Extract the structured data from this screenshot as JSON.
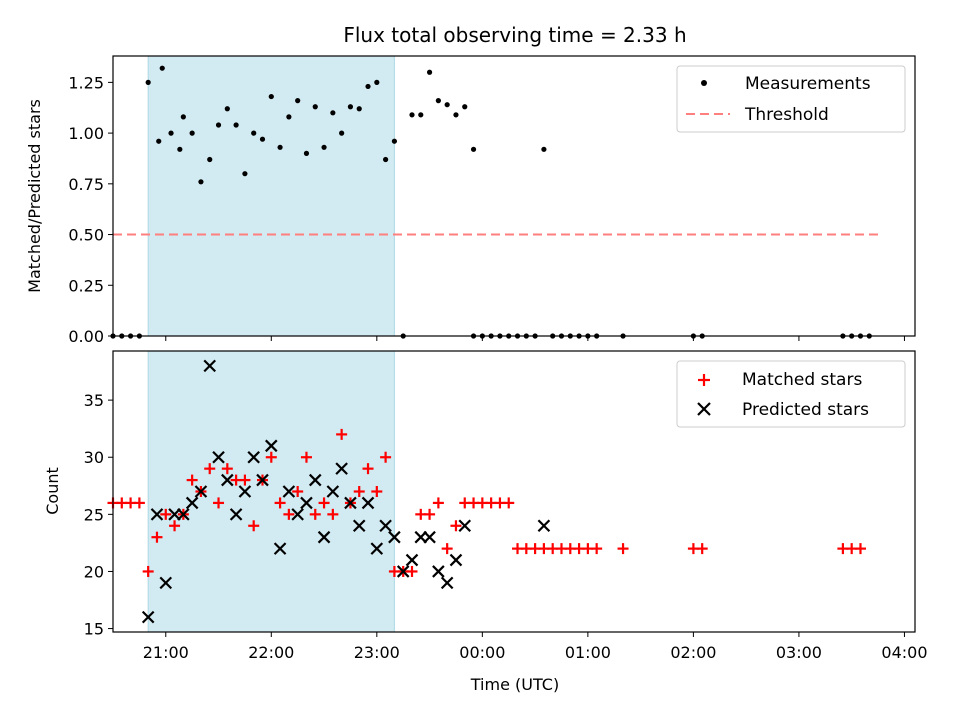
{
  "title": "Flux total observing time = 2.33 h",
  "xlabel": "Time (UTC)",
  "xticks": [
    "21:00",
    "22:00",
    "23:00",
    "00:00",
    "01:00",
    "02:00",
    "03:00",
    "04:00"
  ],
  "shaded_band": {
    "start": "20:50",
    "end": "23:10",
    "color": "#add8e6"
  },
  "chart_data": [
    {
      "type": "scatter",
      "panel": "top",
      "ylabel": "Matched/Predicted stars",
      "ylim": [
        0,
        1.38
      ],
      "yticks": [
        "0.00",
        "0.25",
        "0.50",
        "0.75",
        "1.00",
        "1.25"
      ],
      "legend": {
        "placement": "top-right",
        "entries": [
          "Measurements",
          "Threshold"
        ]
      },
      "series": [
        {
          "name": "Measurements",
          "marker": "dot",
          "color": "#000000",
          "x": [
            "20:50",
            "20:58",
            "21:08",
            "20:56",
            "21:03",
            "21:10",
            "21:15",
            "21:20",
            "21:25",
            "21:30",
            "21:35",
            "21:40",
            "21:45",
            "21:50",
            "21:55",
            "22:00",
            "22:05",
            "22:10",
            "22:15",
            "22:20",
            "22:25",
            "22:30",
            "22:35",
            "22:40",
            "22:45",
            "22:50",
            "22:55",
            "23:00",
            "23:05",
            "23:10",
            "23:20",
            "23:25",
            "23:30",
            "23:35",
            "23:40",
            "23:45",
            "23:50",
            "23:55",
            "00:35",
            "20:30",
            "20:35",
            "20:40",
            "20:45",
            "23:15",
            "23:55",
            "00:00",
            "00:05",
            "00:10",
            "00:15",
            "00:20",
            "00:25",
            "00:30",
            "00:40",
            "00:45",
            "00:50",
            "00:55",
            "01:00",
            "01:05",
            "01:20",
            "02:00",
            "02:05",
            "03:25",
            "03:30",
            "03:35",
            "03:40"
          ],
          "y": [
            1.25,
            1.32,
            0.92,
            0.96,
            1.0,
            1.08,
            1.0,
            0.76,
            0.87,
            1.04,
            1.12,
            1.04,
            0.8,
            1.0,
            0.97,
            1.18,
            0.93,
            1.08,
            1.16,
            0.9,
            1.13,
            0.93,
            1.1,
            1.0,
            1.13,
            1.12,
            1.23,
            1.25,
            0.87,
            0.96,
            1.09,
            1.09,
            1.3,
            1.16,
            1.14,
            1.09,
            1.13,
            0.92,
            0.92,
            0,
            0,
            0,
            0,
            0,
            0,
            0,
            0,
            0,
            0,
            0,
            0,
            0,
            0,
            0,
            0,
            0,
            0,
            0,
            0,
            0,
            0,
            0,
            0,
            0,
            0
          ]
        },
        {
          "name": "Threshold",
          "style": "dashed",
          "color": "#ff7f7f",
          "x": [
            "20:30",
            "03:45"
          ],
          "y": [
            0.5,
            0.5
          ]
        }
      ]
    },
    {
      "type": "scatter",
      "panel": "bottom",
      "ylabel": "Count",
      "ylim": [
        14.7,
        39.3
      ],
      "yticks": [
        "15",
        "20",
        "25",
        "30",
        "35"
      ],
      "legend": {
        "placement": "top-right",
        "entries": [
          "Matched stars",
          "Predicted stars"
        ]
      },
      "series": [
        {
          "name": "Matched stars",
          "marker": "plus",
          "color": "#ff0000",
          "x": [
            "20:30",
            "20:35",
            "20:40",
            "20:45",
            "20:50",
            "20:55",
            "21:00",
            "21:05",
            "21:10",
            "21:15",
            "21:20",
            "21:25",
            "21:30",
            "21:35",
            "21:40",
            "21:45",
            "21:50",
            "21:55",
            "22:00",
            "22:05",
            "22:10",
            "22:15",
            "22:20",
            "22:25",
            "22:30",
            "22:35",
            "22:40",
            "22:45",
            "22:50",
            "22:55",
            "23:00",
            "23:05",
            "23:10",
            "23:15",
            "23:20",
            "23:25",
            "23:30",
            "23:35",
            "23:40",
            "23:45",
            "23:50",
            "23:55",
            "00:00",
            "00:05",
            "00:10",
            "00:15",
            "00:20",
            "00:25",
            "00:30",
            "00:35",
            "00:40",
            "00:45",
            "00:50",
            "00:55",
            "01:00",
            "01:05",
            "01:20",
            "02:00",
            "02:05",
            "03:25",
            "03:30",
            "03:35"
          ],
          "y": [
            26,
            26,
            26,
            26,
            20,
            23,
            25,
            24,
            25,
            28,
            27,
            29,
            26,
            29,
            28,
            28,
            24,
            28,
            30,
            26,
            25,
            27,
            30,
            25,
            26,
            25,
            32,
            26,
            27,
            29,
            27,
            30,
            20,
            20,
            20,
            25,
            25,
            26,
            22,
            24,
            26,
            26,
            26,
            26,
            26,
            26,
            22,
            22,
            22,
            22,
            22,
            22,
            22,
            22,
            22,
            22,
            22,
            22,
            22,
            22,
            22,
            22
          ]
        },
        {
          "name": "Predicted stars",
          "marker": "x",
          "color": "#000000",
          "x": [
            "20:50",
            "20:55",
            "21:00",
            "21:05",
            "21:10",
            "21:15",
            "21:20",
            "21:25",
            "21:30",
            "21:35",
            "21:40",
            "21:45",
            "21:50",
            "21:55",
            "22:00",
            "22:05",
            "22:10",
            "22:15",
            "22:20",
            "22:25",
            "22:30",
            "22:35",
            "22:40",
            "22:45",
            "22:50",
            "22:55",
            "23:00",
            "23:05",
            "23:10",
            "23:15",
            "23:20",
            "23:25",
            "23:30",
            "23:35",
            "23:40",
            "23:45",
            "23:50",
            "00:35"
          ],
          "y": [
            16,
            25,
            19,
            25,
            25,
            26,
            27,
            38,
            30,
            28,
            25,
            27,
            30,
            28,
            31,
            22,
            27,
            25,
            26,
            28,
            23,
            27,
            29,
            26,
            24,
            26,
            22,
            24,
            23,
            20,
            21,
            23,
            23,
            20,
            19,
            21,
            24,
            24
          ]
        }
      ]
    }
  ]
}
